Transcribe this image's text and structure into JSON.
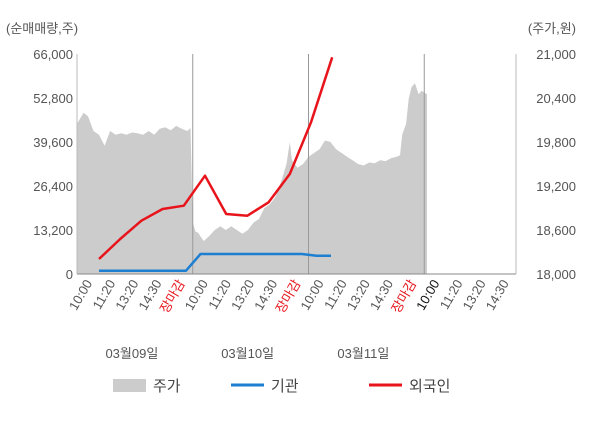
{
  "chart_data": {
    "type": "area",
    "units": {
      "left": "(순매매량,주)",
      "right": "(주가,원)"
    },
    "y_left": {
      "ticks": [
        "66,000",
        "52,800",
        "39,600",
        "26,400",
        "13,200",
        "0"
      ],
      "range": [
        0,
        66000
      ]
    },
    "y_right": {
      "ticks": [
        "21,000",
        "20,400",
        "19,800",
        "19,200",
        "18,600",
        "18,000"
      ],
      "range": [
        18000,
        21000
      ]
    },
    "x_ticks": [
      {
        "label": "10:00",
        "color": "#555555"
      },
      {
        "label": "11:20",
        "color": "#555555"
      },
      {
        "label": "13:20",
        "color": "#555555"
      },
      {
        "label": "14:30",
        "color": "#555555"
      },
      {
        "label": "장마감",
        "color": "#e8141b"
      },
      {
        "label": "10:00",
        "color": "#555555"
      },
      {
        "label": "11:20",
        "color": "#555555"
      },
      {
        "label": "13:20",
        "color": "#555555"
      },
      {
        "label": "14:30",
        "color": "#555555"
      },
      {
        "label": "장마감",
        "color": "#e8141b"
      },
      {
        "label": "10:00",
        "color": "#555555"
      },
      {
        "label": "11:20",
        "color": "#555555"
      },
      {
        "label": "13:20",
        "color": "#555555"
      },
      {
        "label": "14:30",
        "color": "#555555"
      },
      {
        "label": "장마감",
        "color": "#e8141b"
      },
      {
        "label": "10:00",
        "color": "#111111"
      },
      {
        "label": "11:20",
        "color": "#555555"
      },
      {
        "label": "13:20",
        "color": "#555555"
      },
      {
        "label": "14:30",
        "color": "#555555"
      }
    ],
    "dates": [
      "03월09일",
      "03월10일",
      "03월11일"
    ],
    "legend": [
      {
        "label": "주가",
        "color": "#cccccc",
        "kind": "area"
      },
      {
        "label": "기관",
        "color": "#1e7fd0",
        "kind": "line"
      },
      {
        "label": "외국인",
        "color": "#e8141b",
        "kind": "line"
      }
    ],
    "price_series": {
      "name": "주가",
      "axis": "right",
      "points": [
        [
          0,
          20050
        ],
        [
          1.2,
          20200
        ],
        [
          2,
          20150
        ],
        [
          3,
          19950
        ],
        [
          4,
          19900
        ],
        [
          5,
          19750
        ],
        [
          6,
          19950
        ],
        [
          7,
          19900
        ],
        [
          8,
          19920
        ],
        [
          9,
          19900
        ],
        [
          10,
          19930
        ],
        [
          11,
          19920
        ],
        [
          12,
          19900
        ],
        [
          13,
          19950
        ],
        [
          14,
          19900
        ],
        [
          15,
          19980
        ],
        [
          16,
          20000
        ],
        [
          17,
          19960
        ],
        [
          18,
          20020
        ],
        [
          19,
          19980
        ],
        [
          20,
          19950
        ],
        [
          20.6,
          19990
        ],
        [
          21,
          18700
        ],
        [
          21.5,
          18580
        ],
        [
          22,
          18560
        ],
        [
          22.5,
          18500
        ],
        [
          23,
          18450
        ],
        [
          24,
          18520
        ],
        [
          25,
          18600
        ],
        [
          26,
          18650
        ],
        [
          27,
          18600
        ],
        [
          28,
          18650
        ],
        [
          29,
          18600
        ],
        [
          30,
          18550
        ],
        [
          31,
          18600
        ],
        [
          32,
          18700
        ],
        [
          33,
          18750
        ],
        [
          34,
          18900
        ],
        [
          35,
          18950
        ],
        [
          36,
          19050
        ],
        [
          37,
          19250
        ],
        [
          38,
          19500
        ],
        [
          38.6,
          19800
        ],
        [
          39,
          19550
        ],
        [
          40,
          19450
        ],
        [
          41,
          19500
        ],
        [
          42,
          19600
        ],
        [
          43,
          19650
        ],
        [
          44,
          19700
        ],
        [
          45,
          19820
        ],
        [
          46,
          19800
        ],
        [
          47,
          19700
        ],
        [
          48,
          19650
        ],
        [
          49,
          19600
        ],
        [
          50,
          19550
        ],
        [
          51,
          19500
        ],
        [
          52,
          19480
        ],
        [
          53,
          19520
        ],
        [
          54,
          19510
        ],
        [
          55,
          19550
        ],
        [
          56,
          19540
        ],
        [
          57,
          19580
        ],
        [
          58,
          19600
        ],
        [
          58.6,
          19620
        ],
        [
          59,
          19900
        ],
        [
          59.7,
          20050
        ],
        [
          60.2,
          20400
        ],
        [
          60.7,
          20550
        ],
        [
          61.3,
          20600
        ],
        [
          62,
          20450
        ],
        [
          62.5,
          20500
        ],
        [
          63.5,
          20450
        ]
      ]
    },
    "institution_series": {
      "name": "기관",
      "axis": "left",
      "points": [
        [
          0,
          1000
        ],
        [
          1,
          1000
        ],
        [
          2,
          1000
        ],
        [
          3,
          1000
        ],
        [
          4,
          1000
        ],
        [
          5,
          1000
        ],
        [
          6,
          1000
        ],
        [
          7,
          6000
        ],
        [
          8,
          6000
        ],
        [
          9,
          6000
        ],
        [
          10,
          6000
        ],
        [
          11,
          6000
        ],
        [
          12,
          6000
        ],
        [
          13,
          6000
        ],
        [
          14,
          6000
        ],
        [
          15,
          5500
        ],
        [
          16,
          5500
        ]
      ]
    },
    "foreign_series": {
      "name": "외국인",
      "axis": "left",
      "points": [
        [
          0,
          4500
        ],
        [
          1,
          10500
        ],
        [
          2,
          16000
        ],
        [
          3,
          19500
        ],
        [
          4,
          20500
        ],
        [
          5,
          29500
        ],
        [
          6,
          18000
        ],
        [
          7,
          17500
        ],
        [
          8,
          21500
        ],
        [
          9,
          30000
        ],
        [
          10,
          45500
        ],
        [
          11,
          65000
        ]
      ]
    }
  }
}
